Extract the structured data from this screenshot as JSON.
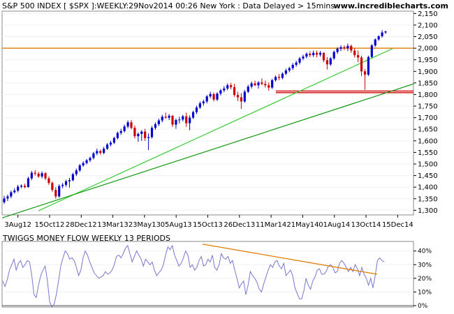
{
  "header": {
    "title": "S&P 500 INDEX [ $SPX ]:WEEKLY:29Nov2014 00:26 New York : Data Delayed > 15mins",
    "site": "www.incrediblecharts.com"
  },
  "chart_data": [
    {
      "type": "ohlc",
      "title": "S&P 500 INDEX [ $SPX ]:WEEKLY:29Nov2014 00:26 New York : Data Delayed > 15mins",
      "x_tick_labels": [
        "3Aug12",
        "15Oct12",
        "28Dec12",
        "13Mar13",
        "23May13",
        "05Aug13",
        "15Oct13",
        "26Dec13",
        "11Mar14",
        "21May14",
        "01Aug14",
        "13Oct14",
        "15Dec14"
      ],
      "y_tick_labels": [
        "1,300",
        "1,350",
        "1,400",
        "1,450",
        "1,500",
        "1,550",
        "1,600",
        "1,650",
        "1,700",
        "1,750",
        "1,800",
        "1,850",
        "1,900",
        "1,950",
        "2,000",
        "2,050",
        "2,100",
        "2,150"
      ],
      "ylim": [
        1280,
        2160
      ],
      "colors": {
        "up": "#0000cc",
        "down": "#cc0000",
        "resistance": "#e07b00",
        "support": "#cc0000",
        "trend_light": "#33cc33",
        "trend_dark": "#119911"
      },
      "levels": {
        "resistance": 2000,
        "support": [
          1815,
          1808
        ]
      },
      "weeks": [
        {
          "o": 1335,
          "h": 1362,
          "l": 1328,
          "c": 1351
        },
        {
          "o": 1351,
          "h": 1368,
          "l": 1340,
          "c": 1360
        },
        {
          "o": 1360,
          "h": 1385,
          "l": 1352,
          "c": 1378
        },
        {
          "o": 1378,
          "h": 1395,
          "l": 1372,
          "c": 1385
        },
        {
          "o": 1385,
          "h": 1410,
          "l": 1378,
          "c": 1402
        },
        {
          "o": 1402,
          "h": 1412,
          "l": 1395,
          "c": 1406
        },
        {
          "o": 1406,
          "h": 1415,
          "l": 1395,
          "c": 1400
        },
        {
          "o": 1400,
          "h": 1445,
          "l": 1398,
          "c": 1438
        },
        {
          "o": 1438,
          "h": 1470,
          "l": 1430,
          "c": 1462
        },
        {
          "o": 1462,
          "h": 1474,
          "l": 1450,
          "c": 1458
        },
        {
          "o": 1458,
          "h": 1466,
          "l": 1440,
          "c": 1446
        },
        {
          "o": 1446,
          "h": 1468,
          "l": 1438,
          "c": 1460
        },
        {
          "o": 1460,
          "h": 1465,
          "l": 1430,
          "c": 1438
        },
        {
          "o": 1438,
          "h": 1446,
          "l": 1410,
          "c": 1418
        },
        {
          "o": 1418,
          "h": 1425,
          "l": 1380,
          "c": 1388
        },
        {
          "o": 1388,
          "h": 1400,
          "l": 1350,
          "c": 1360
        },
        {
          "o": 1360,
          "h": 1412,
          "l": 1355,
          "c": 1405
        },
        {
          "o": 1405,
          "h": 1418,
          "l": 1395,
          "c": 1410
        },
        {
          "o": 1410,
          "h": 1432,
          "l": 1402,
          "c": 1425
        },
        {
          "o": 1425,
          "h": 1440,
          "l": 1398,
          "c": 1430
        },
        {
          "o": 1430,
          "h": 1462,
          "l": 1425,
          "c": 1456
        },
        {
          "o": 1456,
          "h": 1480,
          "l": 1448,
          "c": 1472
        },
        {
          "o": 1472,
          "h": 1500,
          "l": 1466,
          "c": 1494
        },
        {
          "o": 1494,
          "h": 1512,
          "l": 1488,
          "c": 1504
        },
        {
          "o": 1504,
          "h": 1522,
          "l": 1498,
          "c": 1516
        },
        {
          "o": 1516,
          "h": 1532,
          "l": 1508,
          "c": 1526
        },
        {
          "o": 1526,
          "h": 1552,
          "l": 1520,
          "c": 1546
        },
        {
          "o": 1546,
          "h": 1566,
          "l": 1538,
          "c": 1556
        },
        {
          "o": 1556,
          "h": 1562,
          "l": 1540,
          "c": 1548
        },
        {
          "o": 1548,
          "h": 1574,
          "l": 1542,
          "c": 1566
        },
        {
          "o": 1566,
          "h": 1590,
          "l": 1560,
          "c": 1584
        },
        {
          "o": 1584,
          "h": 1600,
          "l": 1576,
          "c": 1592
        },
        {
          "o": 1592,
          "h": 1618,
          "l": 1586,
          "c": 1612
        },
        {
          "o": 1612,
          "h": 1640,
          "l": 1606,
          "c": 1634
        },
        {
          "o": 1634,
          "h": 1652,
          "l": 1626,
          "c": 1642
        },
        {
          "o": 1642,
          "h": 1670,
          "l": 1636,
          "c": 1662
        },
        {
          "o": 1662,
          "h": 1688,
          "l": 1654,
          "c": 1680
        },
        {
          "o": 1680,
          "h": 1690,
          "l": 1650,
          "c": 1656
        },
        {
          "o": 1656,
          "h": 1666,
          "l": 1610,
          "c": 1620
        },
        {
          "o": 1620,
          "h": 1636,
          "l": 1596,
          "c": 1630
        },
        {
          "o": 1630,
          "h": 1646,
          "l": 1600,
          "c": 1640
        },
        {
          "o": 1640,
          "h": 1652,
          "l": 1600,
          "c": 1612
        },
        {
          "o": 1612,
          "h": 1632,
          "l": 1560,
          "c": 1616
        },
        {
          "o": 1616,
          "h": 1664,
          "l": 1610,
          "c": 1656
        },
        {
          "o": 1656,
          "h": 1680,
          "l": 1648,
          "c": 1672
        },
        {
          "o": 1672,
          "h": 1696,
          "l": 1664,
          "c": 1688
        },
        {
          "o": 1688,
          "h": 1712,
          "l": 1680,
          "c": 1704
        },
        {
          "o": 1704,
          "h": 1722,
          "l": 1695,
          "c": 1700
        },
        {
          "o": 1700,
          "h": 1716,
          "l": 1690,
          "c": 1708
        },
        {
          "o": 1708,
          "h": 1712,
          "l": 1660,
          "c": 1670
        },
        {
          "o": 1670,
          "h": 1696,
          "l": 1652,
          "c": 1690
        },
        {
          "o": 1690,
          "h": 1704,
          "l": 1675,
          "c": 1692
        },
        {
          "o": 1692,
          "h": 1712,
          "l": 1684,
          "c": 1706
        },
        {
          "o": 1706,
          "h": 1722,
          "l": 1660,
          "c": 1676
        },
        {
          "o": 1676,
          "h": 1710,
          "l": 1646,
          "c": 1700
        },
        {
          "o": 1700,
          "h": 1730,
          "l": 1694,
          "c": 1724
        },
        {
          "o": 1724,
          "h": 1752,
          "l": 1716,
          "c": 1744
        },
        {
          "o": 1744,
          "h": 1770,
          "l": 1738,
          "c": 1762
        },
        {
          "o": 1762,
          "h": 1778,
          "l": 1752,
          "c": 1770
        },
        {
          "o": 1770,
          "h": 1798,
          "l": 1762,
          "c": 1792
        },
        {
          "o": 1792,
          "h": 1812,
          "l": 1784,
          "c": 1802
        },
        {
          "o": 1802,
          "h": 1808,
          "l": 1770,
          "c": 1778
        },
        {
          "o": 1778,
          "h": 1810,
          "l": 1772,
          "c": 1804
        },
        {
          "o": 1804,
          "h": 1824,
          "l": 1796,
          "c": 1818
        },
        {
          "o": 1818,
          "h": 1836,
          "l": 1810,
          "c": 1826
        },
        {
          "o": 1826,
          "h": 1848,
          "l": 1818,
          "c": 1840
        },
        {
          "o": 1840,
          "h": 1850,
          "l": 1822,
          "c": 1832
        },
        {
          "o": 1832,
          "h": 1846,
          "l": 1790,
          "c": 1798
        },
        {
          "o": 1798,
          "h": 1812,
          "l": 1772,
          "c": 1788
        },
        {
          "o": 1788,
          "h": 1806,
          "l": 1738,
          "c": 1770
        },
        {
          "o": 1770,
          "h": 1820,
          "l": 1764,
          "c": 1812
        },
        {
          "o": 1812,
          "h": 1842,
          "l": 1806,
          "c": 1834
        },
        {
          "o": 1834,
          "h": 1856,
          "l": 1826,
          "c": 1848
        },
        {
          "o": 1848,
          "h": 1860,
          "l": 1836,
          "c": 1840
        },
        {
          "o": 1840,
          "h": 1858,
          "l": 1826,
          "c": 1852
        },
        {
          "o": 1852,
          "h": 1870,
          "l": 1840,
          "c": 1846
        },
        {
          "o": 1846,
          "h": 1860,
          "l": 1830,
          "c": 1840
        },
        {
          "o": 1840,
          "h": 1852,
          "l": 1816,
          "c": 1830
        },
        {
          "o": 1830,
          "h": 1868,
          "l": 1824,
          "c": 1862
        },
        {
          "o": 1862,
          "h": 1882,
          "l": 1856,
          "c": 1876
        },
        {
          "o": 1876,
          "h": 1888,
          "l": 1862,
          "c": 1872
        },
        {
          "o": 1872,
          "h": 1896,
          "l": 1866,
          "c": 1890
        },
        {
          "o": 1890,
          "h": 1912,
          "l": 1884,
          "c": 1904
        },
        {
          "o": 1904,
          "h": 1920,
          "l": 1896,
          "c": 1914
        },
        {
          "o": 1914,
          "h": 1936,
          "l": 1906,
          "c": 1928
        },
        {
          "o": 1928,
          "h": 1946,
          "l": 1920,
          "c": 1938
        },
        {
          "o": 1938,
          "h": 1962,
          "l": 1930,
          "c": 1956
        },
        {
          "o": 1956,
          "h": 1972,
          "l": 1948,
          "c": 1964
        },
        {
          "o": 1964,
          "h": 1982,
          "l": 1956,
          "c": 1976
        },
        {
          "o": 1976,
          "h": 1986,
          "l": 1962,
          "c": 1970
        },
        {
          "o": 1970,
          "h": 1990,
          "l": 1962,
          "c": 1980
        },
        {
          "o": 1980,
          "h": 1990,
          "l": 1960,
          "c": 1972
        },
        {
          "o": 1972,
          "h": 1988,
          "l": 1964,
          "c": 1980
        },
        {
          "o": 1980,
          "h": 1982,
          "l": 1940,
          "c": 1948
        },
        {
          "o": 1948,
          "h": 1962,
          "l": 1908,
          "c": 1930
        },
        {
          "o": 1930,
          "h": 1962,
          "l": 1924,
          "c": 1956
        },
        {
          "o": 1956,
          "h": 1990,
          "l": 1950,
          "c": 1984
        },
        {
          "o": 1984,
          "h": 2004,
          "l": 1976,
          "c": 1998
        },
        {
          "o": 1998,
          "h": 2012,
          "l": 1988,
          "c": 2004
        },
        {
          "o": 2004,
          "h": 2012,
          "l": 1992,
          "c": 2000
        },
        {
          "o": 2000,
          "h": 2020,
          "l": 1988,
          "c": 2010
        },
        {
          "o": 2010,
          "h": 2016,
          "l": 1980,
          "c": 1990
        },
        {
          "o": 1990,
          "h": 2000,
          "l": 1960,
          "c": 1970
        },
        {
          "o": 1970,
          "h": 1990,
          "l": 1940,
          "c": 1960
        },
        {
          "o": 1960,
          "h": 1968,
          "l": 1880,
          "c": 1900
        },
        {
          "o": 1900,
          "h": 1910,
          "l": 1820,
          "c": 1886
        },
        {
          "o": 1886,
          "h": 1968,
          "l": 1880,
          "c": 1962
        },
        {
          "o": 1962,
          "h": 2018,
          "l": 1958,
          "c": 2012
        },
        {
          "o": 2012,
          "h": 2042,
          "l": 2006,
          "c": 2038
        },
        {
          "o": 2038,
          "h": 2056,
          "l": 2032,
          "c": 2052
        },
        {
          "o": 2052,
          "h": 2078,
          "l": 2046,
          "c": 2068
        },
        {
          "o": 2068,
          "h": 2076,
          "l": 2062,
          "c": 2072
        }
      ]
    },
    {
      "type": "line",
      "title": "TWIGGS MONEY FLOW WEEKLY 13 PERIODS",
      "y_tick_labels": [
        "0%",
        "10%",
        "20%",
        "30%",
        "40%"
      ],
      "ylim": [
        -1,
        47
      ],
      "colors": {
        "line": "#7777cc",
        "trend": "#e07b00"
      },
      "values": [
        18,
        14,
        19,
        26,
        30,
        34,
        26,
        31,
        33,
        28,
        30,
        33,
        32,
        22,
        8,
        6,
        15,
        22,
        26,
        29,
        18,
        3,
        -1,
        1,
        8,
        18,
        29,
        35,
        40,
        38,
        34,
        35,
        33,
        28,
        22,
        26,
        35,
        40,
        37,
        32,
        28,
        24,
        22,
        20,
        21,
        22,
        25,
        23,
        24,
        26,
        30,
        36,
        37,
        35,
        38,
        42,
        44,
        38,
        32,
        36,
        40,
        37,
        34,
        29,
        34,
        32,
        30,
        32,
        26,
        22,
        24,
        26,
        30,
        37,
        43,
        41,
        44,
        37,
        33,
        29,
        31,
        35,
        40,
        37,
        28,
        30,
        26,
        28,
        33,
        36,
        29,
        30,
        34,
        32,
        37,
        28,
        26,
        30,
        38,
        35,
        34,
        36,
        31,
        33,
        26,
        20,
        13,
        16,
        18,
        8,
        15,
        25,
        22,
        20,
        17,
        12,
        10,
        16,
        21,
        26,
        30,
        28,
        32,
        33,
        29,
        27,
        31,
        22,
        24,
        26,
        22,
        13,
        9,
        5,
        5,
        11,
        20,
        15,
        12,
        18,
        21,
        26,
        27,
        23,
        23,
        25,
        29,
        30,
        28,
        24,
        25,
        31,
        33,
        31,
        28,
        25,
        28,
        25,
        30,
        27,
        22,
        28,
        23,
        20,
        15,
        20,
        13,
        22,
        33,
        35,
        33,
        32
      ]
    }
  ]
}
